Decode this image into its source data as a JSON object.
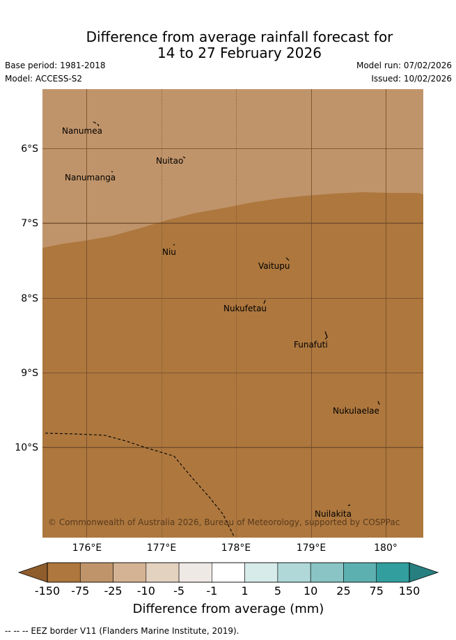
{
  "title_line1": "Difference from average rainfall forecast for",
  "title_line2": "14 to 27 February 2026",
  "base_period": "Base period: 1981-2018",
  "model": "Model: ACCESS-S2",
  "model_run": "Model run: 07/02/2026",
  "issued": "Issued: 10/02/2026",
  "copyright": "© Commonwealth of Australia 2026, Bureau of Meteorology, supported by COSPPac",
  "map": {
    "lon_ticks": [
      "176°E",
      "177°E",
      "178°E",
      "179°E",
      "180°"
    ],
    "lat_ticks": [
      "6°S",
      "7°S",
      "8°S",
      "9°S",
      "10°S"
    ],
    "shading": [
      {
        "category": "-75 to -25",
        "color": "#c0946a"
      },
      {
        "category": "-150 to -75",
        "color": "#ad773e"
      }
    ],
    "places": [
      "Nanumea",
      "Nuitao",
      "Nanumanga",
      "Niu",
      "Vaitupu",
      "Nukufetau",
      "Funafuti",
      "Nukulaelae",
      "Nuilakita"
    ]
  },
  "colorbar": {
    "label": "Difference from average (mm)",
    "ticks": [
      "-150",
      "-75",
      "-25",
      "-10",
      "-5",
      "-1",
      "1",
      "5",
      "10",
      "25",
      "75",
      "150"
    ],
    "colors": [
      "#ad773e",
      "#c0946a",
      "#d4b394",
      "#e4d2c0",
      "#efe9e5",
      "#ffffff",
      "#d6ebea",
      "#b0d8d8",
      "#8ac4c4",
      "#5db0b0",
      "#329e9e"
    ],
    "under_color": "#8f5c2c",
    "over_color": "#277f80"
  },
  "legend_note": "-- -- -- EEZ border V11 (Flanders Marine Institute, 2019)."
}
